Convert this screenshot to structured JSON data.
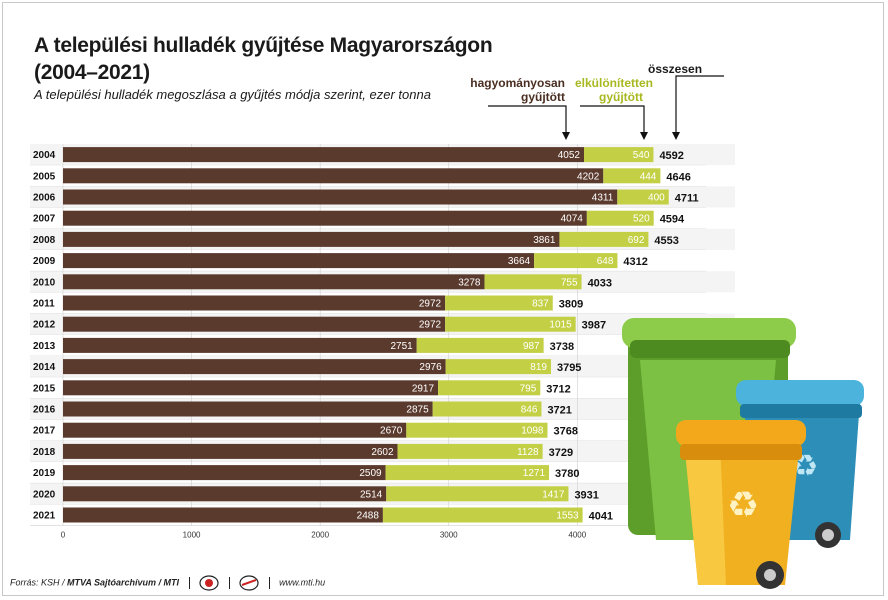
{
  "header": {
    "title_line1": "A települési hulladék gyűjtése Magyarországon",
    "title_line2": "(2004–2021)",
    "subtitle": "A települési hulladék megoszlása a gyűjtés módja szerint, ezer tonna"
  },
  "legend": {
    "traditional_line1": "hagyományosan",
    "traditional_line2": "gyűjtött",
    "selective_line1": "elkülönítetten",
    "selective_line2": "gyűjtött",
    "total": "összesen"
  },
  "footer": {
    "source": "Forrás: KSH /",
    "agency": "MTVA Sajtóarchívum / MTI",
    "url": "www.mti.hu"
  },
  "colors": {
    "traditional": "#5b3a2e",
    "selective": "#c3d045",
    "grid": "#d0d0d0"
  },
  "chart_data": {
    "type": "bar",
    "orientation": "horizontal",
    "stacked": true,
    "categories": [
      "2004",
      "2005",
      "2006",
      "2007",
      "2008",
      "2009",
      "2010",
      "2011",
      "2012",
      "2013",
      "2014",
      "2015",
      "2016",
      "2017",
      "2018",
      "2019",
      "2020",
      "2021"
    ],
    "series": [
      {
        "name": "hagyományosan gyűjtött",
        "values": [
          4052,
          4202,
          4311,
          4074,
          3861,
          3664,
          3278,
          2972,
          2972,
          2751,
          2976,
          2917,
          2875,
          2670,
          2602,
          2509,
          2514,
          2488
        ]
      },
      {
        "name": "elkülönítetten gyűjtött",
        "values": [
          540,
          444,
          400,
          520,
          692,
          648,
          755,
          837,
          1015,
          987,
          819,
          795,
          846,
          1098,
          1128,
          1271,
          1417,
          1553
        ]
      }
    ],
    "totals": [
      4592,
      4646,
      4711,
      4594,
      4553,
      4312,
      4033,
      3809,
      3987,
      3738,
      3795,
      3712,
      3721,
      3768,
      3729,
      3780,
      3931,
      4041
    ],
    "xlim": [
      0,
      5000
    ],
    "xticks": [
      0,
      1000,
      2000,
      3000,
      4000
    ],
    "grid": true
  }
}
